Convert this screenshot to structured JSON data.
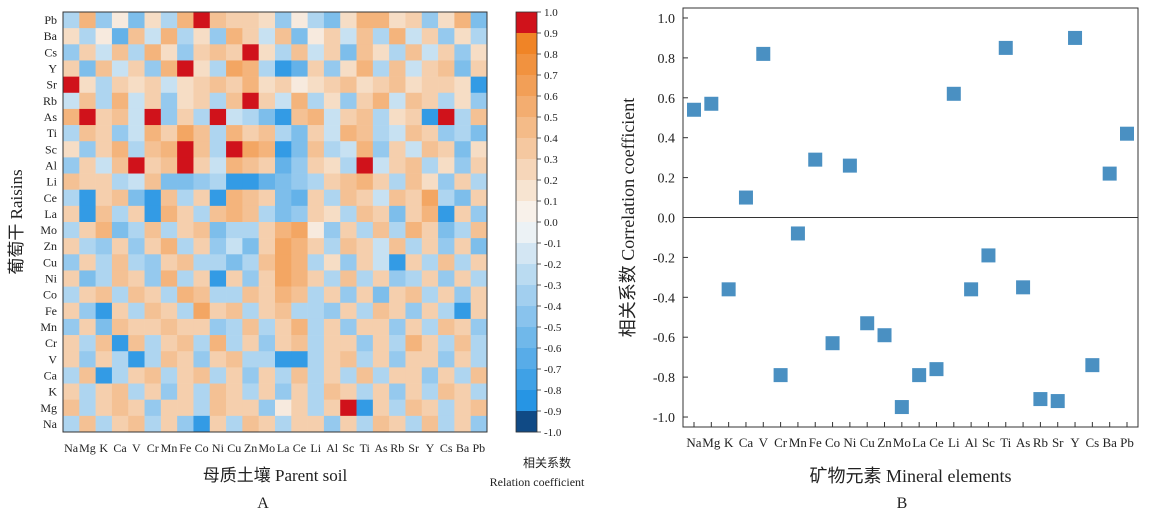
{
  "panelA": {
    "panel_label": "A",
    "ylabel": "葡萄干 Raisins",
    "xlabel": "母质土壤 Parent soil",
    "colorbar_label_cn": "相关系数",
    "colorbar_label_en": "Relation coefficient",
    "colorbar_ticks": [
      "1.0",
      "0.9",
      "0.8",
      "0.7",
      "0.6",
      "0.5",
      "0.4",
      "0.3",
      "0.2",
      "0.1",
      "0.0",
      "-0.1",
      "-0.2",
      "-0.3",
      "-0.4",
      "-0.5",
      "-0.6",
      "-0.7",
      "-0.8",
      "-0.9",
      "-1.0"
    ],
    "colors": {
      "neg": "#1a8fe3",
      "pos": "#f07d1a",
      "extreme_pos": "#d0121b",
      "extreme_neg": "#104a85"
    }
  },
  "panelB": {
    "panel_label": "B",
    "ylabel": "相关系数 Correlation coefficient",
    "xlabel": "矿物元素 Mineral elements",
    "marker_color": "#4a90c2"
  },
  "chart_data": [
    {
      "type": "heatmap",
      "x_categories": [
        "Na",
        "Mg",
        "K",
        "Ca",
        "V",
        "Cr",
        "Mn",
        "Fe",
        "Co",
        "Ni",
        "Cu",
        "Zn",
        "Mo",
        "La",
        "Ce",
        "Li",
        "Al",
        "Sc",
        "Ti",
        "As",
        "Rb",
        "Sr",
        "Y",
        "Cs",
        "Ba",
        "Pb"
      ],
      "y_categories": [
        "Pb",
        "Ba",
        "Cs",
        "Y",
        "Sr",
        "Rb",
        "As",
        "Ti",
        "Sc",
        "Al",
        "Li",
        "Ce",
        "La",
        "Mo",
        "Zn",
        "Cu",
        "Ni",
        "Co",
        "Fe",
        "Mn",
        "Cr",
        "V",
        "Ca",
        "K",
        "Mg",
        "Na"
      ],
      "values": [
        [
          -0.3,
          0.5,
          -0.4,
          0.1,
          -0.5,
          0.2,
          -0.3,
          0.5,
          1.0,
          0.4,
          0.3,
          0.3,
          0.2,
          -0.4,
          0.1,
          -0.3,
          -0.5,
          0.2,
          0.5,
          0.5,
          0.2,
          0.3,
          -0.4,
          0.2,
          0.5,
          -0.5
        ],
        [
          0.2,
          -0.3,
          0.1,
          -0.6,
          0.4,
          -0.2,
          0.5,
          -0.3,
          0.2,
          -0.4,
          0.5,
          0.3,
          -0.2,
          0.4,
          -0.5,
          0.1,
          0.3,
          -0.2,
          0.4,
          -0.3,
          0.5,
          -0.2,
          0.3,
          -0.4,
          0.2,
          -0.3
        ],
        [
          -0.4,
          0.3,
          -0.2,
          0.4,
          -0.3,
          0.5,
          0.2,
          -0.4,
          0.3,
          0.4,
          0.3,
          1.0,
          0.2,
          -0.3,
          0.4,
          -0.2,
          0.3,
          -0.5,
          0.4,
          0.2,
          -0.3,
          0.4,
          -0.2,
          0.3,
          -0.4,
          0.2
        ],
        [
          0.3,
          -0.5,
          0.4,
          -0.2,
          0.3,
          -0.4,
          0.5,
          1.0,
          0.2,
          -0.3,
          0.6,
          0.5,
          -0.3,
          -0.8,
          -0.6,
          0.3,
          -0.4,
          0.2,
          0.5,
          -0.3,
          0.4,
          -0.2,
          0.3,
          0.4,
          -0.5,
          0.3
        ],
        [
          1.0,
          0.2,
          -0.3,
          0.3,
          0.2,
          0.3,
          -0.2,
          0.2,
          0.3,
          0.4,
          0.3,
          0.5,
          0.2,
          0.3,
          0.1,
          0.2,
          0.3,
          0.4,
          0.2,
          0.3,
          0.4,
          0.2,
          0.3,
          0.3,
          0.2,
          -0.8
        ],
        [
          -0.2,
          0.4,
          -0.3,
          0.5,
          -0.2,
          0.3,
          -0.4,
          0.2,
          0.3,
          -0.3,
          0.4,
          1.0,
          0.3,
          -0.2,
          0.5,
          -0.3,
          0.2,
          -0.4,
          0.3,
          0.5,
          -0.2,
          0.4,
          0.3,
          -0.3,
          0.2,
          -0.4
        ],
        [
          0.5,
          1.0,
          0.3,
          0.4,
          -0.2,
          1.0,
          -0.4,
          0.3,
          -0.3,
          1.0,
          -0.2,
          -0.3,
          -0.5,
          -0.8,
          0.4,
          0.5,
          -0.2,
          0.3,
          0.4,
          -0.3,
          0.2,
          0.3,
          -0.8,
          1.0,
          -0.3,
          0.4
        ],
        [
          -0.3,
          0.4,
          0.3,
          -0.4,
          -0.2,
          0.5,
          0.3,
          0.6,
          0.4,
          -0.3,
          0.5,
          0.3,
          0.4,
          -0.3,
          -0.5,
          0.3,
          -0.2,
          0.5,
          0.4,
          -0.3,
          -0.2,
          0.4,
          0.3,
          -0.4,
          -0.3,
          -0.5
        ],
        [
          0.2,
          -0.4,
          0.3,
          0.5,
          -0.3,
          0.4,
          0.5,
          1.0,
          0.4,
          -0.3,
          1.0,
          0.6,
          0.5,
          -0.8,
          -0.5,
          0.4,
          -0.3,
          -0.2,
          0.5,
          -0.4,
          0.3,
          -0.2,
          0.4,
          0.3,
          -0.5,
          0.2
        ],
        [
          -0.4,
          0.3,
          -0.2,
          0.4,
          1.0,
          0.3,
          0.4,
          1.0,
          0.3,
          -0.2,
          0.5,
          0.4,
          0.3,
          -0.6,
          -0.4,
          0.3,
          0.2,
          -0.3,
          1.0,
          -0.2,
          0.3,
          0.4,
          -0.3,
          0.2,
          -0.4,
          0.3
        ],
        [
          0.4,
          0.3,
          0.3,
          -0.3,
          -0.2,
          0.4,
          -0.5,
          -0.5,
          -0.4,
          -0.3,
          -0.8,
          -0.8,
          -0.6,
          -0.5,
          -0.4,
          -0.3,
          0.3,
          0.4,
          0.5,
          0.3,
          -0.3,
          0.4,
          0.2,
          -0.4,
          0.3,
          -0.3
        ],
        [
          -0.3,
          -0.8,
          0.3,
          0.4,
          -0.5,
          -0.8,
          0.4,
          -0.3,
          0.3,
          -0.8,
          0.5,
          0.4,
          0.3,
          -0.5,
          -0.6,
          0.3,
          -0.3,
          0.4,
          0.3,
          -0.2,
          0.4,
          0.3,
          0.6,
          -0.3,
          -0.5,
          0.3
        ],
        [
          0.3,
          -0.8,
          0.4,
          -0.3,
          0.3,
          -0.8,
          0.5,
          0.3,
          -0.3,
          0.4,
          0.5,
          0.4,
          -0.3,
          -0.5,
          -0.4,
          0.3,
          0.2,
          -0.3,
          0.4,
          0.3,
          -0.5,
          0.3,
          0.5,
          -0.8,
          0.3,
          -0.4
        ],
        [
          -0.3,
          0.3,
          0.5,
          -0.5,
          -0.3,
          0.4,
          -0.3,
          0.3,
          0.4,
          -0.5,
          -0.3,
          -0.3,
          0.3,
          0.5,
          0.6,
          0.1,
          -0.4,
          0.3,
          -0.3,
          0.4,
          -0.3,
          0.5,
          0.3,
          -0.5,
          -0.3,
          0.4
        ],
        [
          0.3,
          -0.3,
          -0.4,
          0.3,
          -0.4,
          0.3,
          0.5,
          -0.3,
          0.3,
          -0.4,
          -0.2,
          -0.5,
          0.3,
          0.6,
          0.5,
          0.3,
          -0.3,
          0.4,
          0.3,
          -0.2,
          0.4,
          -0.3,
          0.3,
          -0.4,
          0.3,
          -0.5
        ],
        [
          -0.4,
          0.3,
          -0.3,
          0.4,
          -0.3,
          -0.4,
          0.3,
          0.4,
          -0.3,
          -0.3,
          -0.5,
          -0.3,
          0.4,
          0.6,
          0.5,
          -0.3,
          0.2,
          -0.4,
          0.3,
          -0.2,
          -0.8,
          0.3,
          -0.3,
          0.4,
          -0.3,
          0.3
        ],
        [
          0.3,
          -0.5,
          -0.3,
          0.4,
          0.3,
          -0.4,
          0.5,
          -0.3,
          0.3,
          -0.8,
          0.3,
          -0.4,
          0.3,
          0.6,
          0.5,
          0.3,
          -0.3,
          0.4,
          -0.3,
          0.3,
          -0.4,
          -0.3,
          0.3,
          -0.4,
          0.3,
          -0.3
        ],
        [
          -0.3,
          0.3,
          0.4,
          -0.3,
          0.4,
          0.3,
          -0.3,
          0.5,
          0.4,
          -0.3,
          -0.3,
          0.4,
          0.3,
          0.5,
          0.4,
          -0.3,
          0.3,
          -0.4,
          0.3,
          -0.5,
          0.3,
          0.4,
          -0.3,
          0.3,
          -0.4,
          0.3
        ],
        [
          0.3,
          -0.4,
          -0.8,
          0.3,
          -0.3,
          0.4,
          0.3,
          -0.3,
          0.6,
          0.3,
          0.4,
          -0.3,
          0.3,
          0.4,
          -0.3,
          -0.3,
          -0.4,
          0.3,
          -0.3,
          0.4,
          0.3,
          -0.4,
          0.3,
          -0.3,
          -0.8,
          0.3
        ],
        [
          -0.4,
          0.3,
          -0.5,
          0.4,
          0.3,
          0.3,
          0.4,
          0.3,
          0.3,
          -0.4,
          -0.3,
          0.4,
          -0.3,
          0.3,
          0.5,
          -0.3,
          0.3,
          -0.4,
          0.3,
          0.3,
          -0.4,
          0.3,
          -0.3,
          0.4,
          0.3,
          -0.4
        ],
        [
          0.3,
          -0.3,
          0.4,
          -0.8,
          0.4,
          -0.3,
          0.3,
          0.4,
          -0.3,
          0.5,
          -0.3,
          0.3,
          -0.4,
          0.3,
          0.4,
          -0.3,
          0.3,
          0.3,
          -0.4,
          0.3,
          -0.3,
          0.5,
          0.3,
          -0.3,
          0.4,
          -0.3
        ],
        [
          0.3,
          -0.4,
          0.3,
          -0.3,
          -0.8,
          -0.3,
          0.4,
          0.3,
          -0.4,
          0.3,
          0.4,
          -0.3,
          -0.3,
          -0.8,
          -0.8,
          -0.3,
          0.3,
          0.4,
          -0.3,
          0.3,
          -0.4,
          0.3,
          0.3,
          -0.4,
          0.3,
          -0.3
        ],
        [
          -0.3,
          0.4,
          -0.8,
          -0.3,
          0.3,
          0.4,
          -0.3,
          0.3,
          0.4,
          -0.3,
          0.3,
          -0.4,
          0.3,
          -0.3,
          0.4,
          -0.3,
          0.3,
          -0.3,
          0.4,
          -0.3,
          0.3,
          0.3,
          -0.4,
          0.3,
          -0.3,
          0.4
        ],
        [
          0.3,
          -0.3,
          0.3,
          0.4,
          -0.3,
          0.3,
          -0.4,
          0.3,
          -0.3,
          0.4,
          0.3,
          -0.3,
          0.3,
          -0.4,
          0.3,
          -0.3,
          0.4,
          0.3,
          -0.3,
          0.3,
          -0.4,
          0.3,
          -0.3,
          0.4,
          0.3,
          -0.3
        ],
        [
          0.4,
          -0.3,
          0.3,
          0.4,
          0.3,
          -0.4,
          0.3,
          0.3,
          -0.3,
          0.4,
          0.3,
          0.3,
          -0.4,
          0.1,
          0.3,
          -0.3,
          0.3,
          1.0,
          -0.8,
          0.3,
          -0.3,
          0.4,
          0.3,
          -0.3,
          0.3,
          0.4
        ],
        [
          -0.3,
          0.4,
          -0.3,
          0.3,
          0.4,
          -0.3,
          0.3,
          -0.4,
          -0.8,
          0.3,
          -0.3,
          0.4,
          0.3,
          -0.3,
          0.3,
          0.3,
          -0.4,
          0.3,
          -0.3,
          0.4,
          0.3,
          -0.3,
          0.4,
          -0.3,
          0.3,
          -0.4
        ]
      ],
      "zlim": [
        -1.0,
        1.0
      ],
      "colorbar": true
    },
    {
      "type": "scatter",
      "categories": [
        "Na",
        "Mg",
        "K",
        "Ca",
        "V",
        "Cr",
        "Mn",
        "Fe",
        "Co",
        "Ni",
        "Cu",
        "Zn",
        "Mo",
        "La",
        "Ce",
        "Li",
        "Al",
        "Sc",
        "Ti",
        "As",
        "Rb",
        "Sr",
        "Y",
        "Cs",
        "Ba",
        "Pb"
      ],
      "values": [
        0.54,
        0.57,
        -0.36,
        0.1,
        0.82,
        -0.79,
        -0.08,
        0.29,
        -0.63,
        0.26,
        -0.53,
        -0.59,
        -0.95,
        -0.79,
        -0.76,
        0.62,
        -0.36,
        -0.19,
        0.85,
        -0.35,
        -0.91,
        -0.92,
        0.9,
        -0.74,
        0.22,
        0.42
      ],
      "ylabel": "相关系数 Correlation coefficient",
      "xlabel": "矿物元素 Mineral elements",
      "ylim": [
        -1.05,
        1.05
      ],
      "yticks": [
        -1.0,
        -0.8,
        -0.6,
        -0.4,
        -0.2,
        0.0,
        0.2,
        0.4,
        0.6,
        0.8,
        1.0
      ],
      "reference_line": 0.0
    }
  ]
}
